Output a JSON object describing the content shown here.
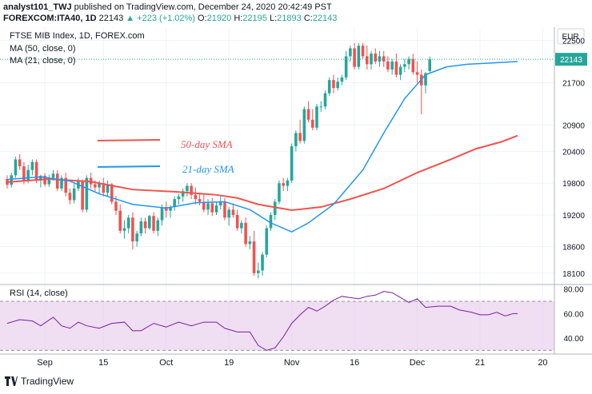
{
  "header": {
    "author": "analyst101_TWJ",
    "published": "published on TradingView.com, December 24, 2020 20:42:49 PST",
    "symbol": "FOREXCOM:ITA40, 1D",
    "last": "22143",
    "change": "▲ +223 (+1.02%)",
    "o_label": "O:",
    "o": "21920",
    "h_label": "H:",
    "h": "22195",
    "l_label": "L:",
    "l": "21893",
    "c_label": "C:",
    "c": "22143"
  },
  "legend": {
    "title": "FTSE MIB Index, 1D, FOREX.com",
    "ma50": "MA (50, close, 0)",
    "ma21": "MA (21, close, 0)",
    "rsi": "RSI (14, close)"
  },
  "annotations": {
    "sma50": "50-day SMA",
    "sma21": "21-day SMA"
  },
  "currency": "EUR",
  "last_price_label": "22143",
  "footer": {
    "brand": "TradingView"
  },
  "colors": {
    "up": "#26a69a",
    "down": "#ef5350",
    "ma50": "#ef5350",
    "ma21": "#2196f3",
    "rsi": "#7b1fa2",
    "rsi_band": "#e1bee7"
  },
  "chart_data": {
    "type": "candlestick",
    "price_ticks": [
      "22500",
      "21700",
      "20900",
      "20400",
      "19800",
      "19200",
      "18600",
      "18100"
    ],
    "price_tick_values": [
      22500,
      21700,
      20900,
      20400,
      19800,
      19200,
      18600,
      18100
    ],
    "ylim": [
      17900,
      22750
    ],
    "x_ticks": [
      "Sep",
      "15",
      "Oct",
      "19",
      "Nov",
      "16",
      "Dec",
      "21",
      "20"
    ],
    "x_tick_bars": [
      9,
      23,
      38,
      53,
      68,
      83,
      98,
      113,
      128
    ],
    "candles": [
      [
        19880,
        19950,
        19700,
        19770
      ],
      [
        19770,
        20000,
        19720,
        19950
      ],
      [
        19950,
        20300,
        19900,
        20250
      ],
      [
        20250,
        20350,
        20050,
        20120
      ],
      [
        20120,
        20200,
        19780,
        19850
      ],
      [
        19850,
        20150,
        19800,
        20050
      ],
      [
        20050,
        20250,
        19950,
        20200
      ],
      [
        20200,
        20250,
        19800,
        19850
      ],
      [
        19850,
        19960,
        19720,
        19940
      ],
      [
        19940,
        19990,
        19740,
        19780
      ],
      [
        19780,
        19960,
        19730,
        19900
      ],
      [
        19900,
        20050,
        19850,
        19980
      ],
      [
        19980,
        20050,
        19650,
        19700
      ],
      [
        19700,
        19950,
        19650,
        19900
      ],
      [
        19900,
        20000,
        19550,
        19620
      ],
      [
        19620,
        19700,
        19400,
        19480
      ],
      [
        19480,
        19800,
        19420,
        19700
      ],
      [
        19700,
        19900,
        19650,
        19850
      ],
      [
        19850,
        19870,
        19250,
        19300
      ],
      [
        19300,
        19950,
        19250,
        19900
      ],
      [
        19900,
        20000,
        19700,
        19780
      ],
      [
        19780,
        19850,
        19650,
        19720
      ],
      [
        19720,
        19850,
        19600,
        19800
      ],
      [
        19800,
        19900,
        19550,
        19620
      ],
      [
        19620,
        19850,
        19560,
        19780
      ],
      [
        19780,
        19800,
        19400,
        19450
      ],
      [
        19450,
        19560,
        19200,
        19280
      ],
      [
        19280,
        19400,
        18850,
        18900
      ],
      [
        18900,
        19100,
        18750,
        18950
      ],
      [
        18950,
        19200,
        18850,
        19150
      ],
      [
        19150,
        19250,
        18550,
        18700
      ],
      [
        18700,
        18900,
        18600,
        18850
      ],
      [
        18850,
        19150,
        18800,
        19080
      ],
      [
        19080,
        19150,
        18850,
        18950
      ],
      [
        18950,
        19200,
        18920,
        19180
      ],
      [
        19180,
        19250,
        18850,
        18900
      ],
      [
        18900,
        19150,
        18800,
        19100
      ],
      [
        19100,
        19400,
        19000,
        19350
      ],
      [
        19350,
        19450,
        19150,
        19280
      ],
      [
        19280,
        19380,
        19150,
        19350
      ],
      [
        19350,
        19550,
        19280,
        19500
      ],
      [
        19500,
        19600,
        19400,
        19550
      ],
      [
        19550,
        19700,
        19450,
        19650
      ],
      [
        19650,
        19800,
        19550,
        19750
      ],
      [
        19750,
        19800,
        19500,
        19580
      ],
      [
        19580,
        19720,
        19400,
        19500
      ],
      [
        19500,
        19620,
        19380,
        19450
      ],
      [
        19450,
        19600,
        19250,
        19300
      ],
      [
        19300,
        19500,
        19200,
        19420
      ],
      [
        19420,
        19520,
        19180,
        19250
      ],
      [
        19250,
        19450,
        19200,
        19380
      ],
      [
        19380,
        19550,
        19300,
        19450
      ],
      [
        19450,
        19520,
        19100,
        19150
      ],
      [
        19150,
        19350,
        19000,
        19300
      ],
      [
        19300,
        19420,
        19150,
        19200
      ],
      [
        19200,
        19300,
        18900,
        18950
      ],
      [
        18950,
        19100,
        18850,
        19050
      ],
      [
        19050,
        19150,
        18600,
        18650
      ],
      [
        18650,
        18800,
        18550,
        18700
      ],
      [
        18700,
        18900,
        18050,
        18100
      ],
      [
        18100,
        18300,
        18000,
        18150
      ],
      [
        18150,
        18500,
        18050,
        18450
      ],
      [
        18450,
        19000,
        18400,
        18950
      ],
      [
        18950,
        19250,
        18900,
        19200
      ],
      [
        19200,
        19500,
        19100,
        19450
      ],
      [
        19450,
        19850,
        19400,
        19800
      ],
      [
        19800,
        19900,
        19650,
        19750
      ],
      [
        19750,
        19900,
        19650,
        19850
      ],
      [
        19850,
        20550,
        19800,
        20500
      ],
      [
        20500,
        20800,
        20400,
        20750
      ],
      [
        20750,
        21000,
        20550,
        20600
      ],
      [
        20600,
        21250,
        20550,
        21200
      ],
      [
        21200,
        21350,
        20950,
        21000
      ],
      [
        21000,
        21200,
        20800,
        20850
      ],
      [
        20850,
        21300,
        20800,
        21250
      ],
      [
        21250,
        21350,
        21150,
        21250
      ],
      [
        21250,
        21550,
        21200,
        21500
      ],
      [
        21500,
        21800,
        21450,
        21750
      ],
      [
        21750,
        21850,
        21500,
        21600
      ],
      [
        21600,
        21800,
        21550,
        21720
      ],
      [
        21720,
        21850,
        21650,
        21800
      ],
      [
        21800,
        22300,
        21750,
        22200
      ],
      [
        22200,
        22400,
        22100,
        22350
      ],
      [
        22350,
        22450,
        21950,
        22000
      ],
      [
        22000,
        22450,
        21950,
        22400
      ],
      [
        22400,
        22450,
        22150,
        22200
      ],
      [
        22200,
        22400,
        21950,
        22050
      ],
      [
        22050,
        22300,
        21950,
        22250
      ],
      [
        22250,
        22350,
        22050,
        22100
      ],
      [
        22100,
        22300,
        22000,
        22200
      ],
      [
        22200,
        22300,
        22000,
        22100
      ],
      [
        22100,
        22200,
        21900,
        21950
      ],
      [
        21950,
        22150,
        21850,
        22100
      ],
      [
        22100,
        22250,
        21800,
        21850
      ],
      [
        21850,
        22050,
        21750,
        22000
      ],
      [
        22000,
        22150,
        21900,
        22050
      ],
      [
        22050,
        22200,
        21950,
        22150
      ],
      [
        22150,
        22250,
        21850,
        21900
      ],
      [
        21900,
        22100,
        21700,
        21850
      ],
      [
        21850,
        21950,
        21100,
        21650
      ],
      [
        21650,
        21900,
        21500,
        21880
      ],
      [
        21920,
        22195,
        21893,
        22143
      ]
    ],
    "ma50": [
      [
        0,
        19820
      ],
      [
        10,
        19880
      ],
      [
        20,
        19830
      ],
      [
        30,
        19680
      ],
      [
        40,
        19640
      ],
      [
        50,
        19580
      ],
      [
        55,
        19520
      ],
      [
        60,
        19400
      ],
      [
        68,
        19290
      ],
      [
        75,
        19350
      ],
      [
        82,
        19500
      ],
      [
        90,
        19700
      ],
      [
        98,
        20000
      ],
      [
        106,
        20250
      ],
      [
        112,
        20450
      ],
      [
        118,
        20580
      ],
      [
        122,
        20700
      ]
    ],
    "ma21": [
      [
        0,
        19870
      ],
      [
        8,
        19920
      ],
      [
        15,
        19840
      ],
      [
        22,
        19600
      ],
      [
        30,
        19400
      ],
      [
        38,
        19330
      ],
      [
        45,
        19430
      ],
      [
        52,
        19450
      ],
      [
        58,
        19300
      ],
      [
        63,
        19050
      ],
      [
        68,
        18880
      ],
      [
        72,
        19050
      ],
      [
        78,
        19400
      ],
      [
        85,
        20050
      ],
      [
        90,
        20750
      ],
      [
        95,
        21400
      ],
      [
        100,
        21850
      ],
      [
        105,
        22000
      ],
      [
        110,
        22050
      ],
      [
        115,
        22070
      ],
      [
        122,
        22100
      ]
    ],
    "rsi_ticks": [
      "80.00",
      "60.00",
      "40.00"
    ],
    "rsi_tick_values": [
      80,
      60,
      40
    ],
    "rsi_band": [
      30,
      70
    ],
    "rsi_ylim": [
      27,
      83
    ],
    "rsi": [
      [
        0,
        52
      ],
      [
        3,
        55
      ],
      [
        6,
        54
      ],
      [
        8,
        50
      ],
      [
        11,
        57
      ],
      [
        13,
        50
      ],
      [
        15,
        48
      ],
      [
        17,
        53
      ],
      [
        19,
        50
      ],
      [
        22,
        48
      ],
      [
        25,
        52
      ],
      [
        28,
        53
      ],
      [
        30,
        46
      ],
      [
        32,
        46
      ],
      [
        35,
        52
      ],
      [
        38,
        49
      ],
      [
        41,
        53
      ],
      [
        44,
        50
      ],
      [
        47,
        53
      ],
      [
        50,
        53
      ],
      [
        52,
        48
      ],
      [
        55,
        45
      ],
      [
        58,
        45
      ],
      [
        60,
        34
      ],
      [
        62,
        30
      ],
      [
        64,
        32
      ],
      [
        66,
        41
      ],
      [
        68,
        52
      ],
      [
        70,
        59
      ],
      [
        72,
        65
      ],
      [
        74,
        62
      ],
      [
        76,
        66
      ],
      [
        78,
        71
      ],
      [
        80,
        74
      ],
      [
        82,
        73
      ],
      [
        84,
        72
      ],
      [
        86,
        74
      ],
      [
        88,
        75
      ],
      [
        90,
        78
      ],
      [
        92,
        77
      ],
      [
        94,
        73
      ],
      [
        96,
        69
      ],
      [
        98,
        72
      ],
      [
        100,
        65
      ],
      [
        103,
        66
      ],
      [
        106,
        66
      ],
      [
        108,
        63
      ],
      [
        111,
        61
      ],
      [
        113,
        59
      ],
      [
        115,
        59
      ],
      [
        117,
        61
      ],
      [
        119,
        58
      ],
      [
        121,
        60
      ],
      [
        122,
        60
      ]
    ]
  }
}
